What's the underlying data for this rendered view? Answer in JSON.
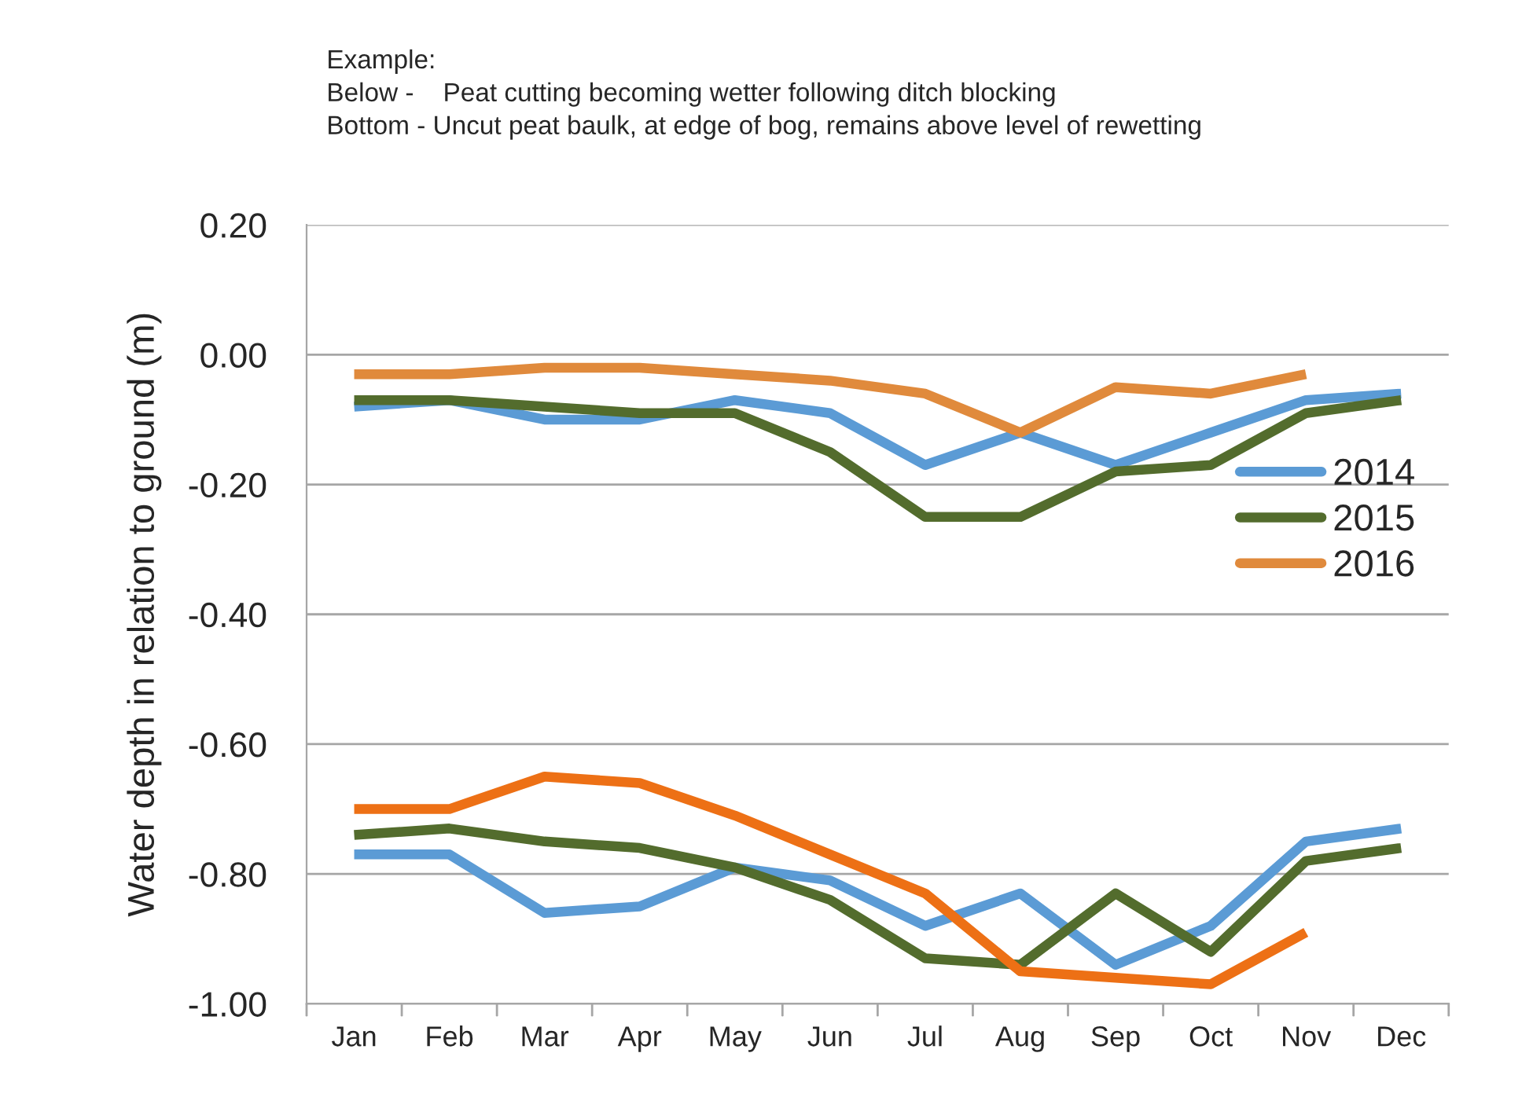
{
  "chart_data": {
    "type": "line",
    "ylabel": "Water depth in relation to ground (m)",
    "annotations": [
      "Example:",
      "Below -    Peat cutting becoming wetter following ditch blocking",
      "Bottom - Uncut peat baulk, at edge of bog, remains above level of rewetting"
    ],
    "categories": [
      "Jan",
      "Feb",
      "Mar",
      "Apr",
      "May",
      "Jun",
      "Jul",
      "Aug",
      "Sep",
      "Oct",
      "Nov",
      "Dec"
    ],
    "series": [
      {
        "name": "2014",
        "color": "#5b9bd5",
        "values": [
          -0.08,
          -0.07,
          -0.1,
          -0.1,
          -0.07,
          -0.09,
          -0.17,
          -0.12,
          -0.17,
          -0.12,
          -0.07,
          -0.06
        ]
      },
      {
        "name": "2015",
        "color": "#536c2d",
        "values": [
          -0.07,
          -0.07,
          -0.08,
          -0.09,
          -0.09,
          -0.15,
          -0.25,
          -0.25,
          -0.18,
          -0.17,
          -0.09,
          -0.07
        ]
      },
      {
        "name": "2016",
        "color": "#e08a3c",
        "values": [
          -0.03,
          -0.03,
          -0.02,
          -0.02,
          -0.03,
          -0.04,
          -0.06,
          -0.12,
          -0.05,
          -0.06,
          -0.03,
          null
        ]
      },
      {
        "color": "#5b9bd5",
        "values": [
          -0.77,
          -0.77,
          -0.86,
          -0.85,
          -0.79,
          -0.81,
          -0.88,
          -0.83,
          -0.94,
          -0.88,
          -0.75,
          -0.73
        ]
      },
      {
        "color": "#536c2d",
        "values": [
          -0.74,
          -0.73,
          -0.75,
          -0.76,
          -0.79,
          -0.84,
          -0.93,
          -0.94,
          -0.83,
          -0.92,
          -0.78,
          -0.76
        ]
      },
      {
        "color": "#ed7015",
        "values": [
          -0.7,
          -0.7,
          -0.65,
          -0.66,
          -0.71,
          -0.77,
          -0.83,
          -0.95,
          -0.96,
          -0.97,
          -0.89,
          null
        ]
      }
    ],
    "ylim": [
      -1.0,
      0.2
    ],
    "yticks": [
      {
        "value": -1.0,
        "label": "-1.00"
      },
      {
        "value": -0.8,
        "label": "-0.80"
      },
      {
        "value": -0.6,
        "label": "-0.60"
      },
      {
        "value": -0.4,
        "label": "-0.40"
      },
      {
        "value": -0.2,
        "label": "-0.20"
      },
      {
        "value": 0.0,
        "label": "0.00"
      },
      {
        "value": 0.2,
        "label": "0.20"
      }
    ],
    "grid": "y",
    "legend": "right",
    "marker": "none",
    "line_style": "solid"
  }
}
